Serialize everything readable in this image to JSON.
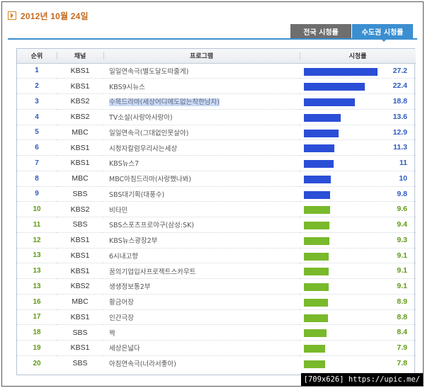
{
  "date": "2012년 10월 24일",
  "tabs": {
    "national": "전국 시청률",
    "capital": "수도권 시청률"
  },
  "columns": {
    "rank": "순위",
    "channel": "채널",
    "program": "프로그램",
    "rating": "시청률"
  },
  "rating_scale_max": 27.2,
  "rows": [
    {
      "rank": "1",
      "channel": "KBS1",
      "program": "일일연속극(별도달도따줄게)",
      "rating": "27.2",
      "tier": "blue",
      "highlight": false
    },
    {
      "rank": "2",
      "channel": "KBS1",
      "program": "KBS9시뉴스",
      "rating": "22.4",
      "tier": "blue",
      "highlight": false
    },
    {
      "rank": "3",
      "channel": "KBS2",
      "program": "수목드라마(세상어디에도없는착한남자)",
      "rating": "18.8",
      "tier": "blue",
      "highlight": true
    },
    {
      "rank": "4",
      "channel": "KBS2",
      "program": "TV소설(사랑아사랑아)",
      "rating": "13.6",
      "tier": "blue",
      "highlight": false
    },
    {
      "rank": "5",
      "channel": "MBC",
      "program": "일일연속극(그대없인못살아)",
      "rating": "12.9",
      "tier": "blue",
      "highlight": false
    },
    {
      "rank": "6",
      "channel": "KBS1",
      "program": "시청자칼럼우리사는세상",
      "rating": "11.3",
      "tier": "blue",
      "highlight": false
    },
    {
      "rank": "7",
      "channel": "KBS1",
      "program": "KBS뉴스7",
      "rating": "11",
      "tier": "blue",
      "highlight": false
    },
    {
      "rank": "8",
      "channel": "MBC",
      "program": "MBC아침드라마(사랑했나봐)",
      "rating": "10",
      "tier": "blue",
      "highlight": false
    },
    {
      "rank": "9",
      "channel": "SBS",
      "program": "SBS대기획(대풍수)",
      "rating": "9.8",
      "tier": "blue",
      "highlight": false
    },
    {
      "rank": "10",
      "channel": "KBS2",
      "program": "비타민",
      "rating": "9.6",
      "tier": "green",
      "highlight": false
    },
    {
      "rank": "11",
      "channel": "SBS",
      "program": "SBS스포츠프로야구(삼성:SK)",
      "rating": "9.4",
      "tier": "green",
      "highlight": false
    },
    {
      "rank": "12",
      "channel": "KBS1",
      "program": "KBS뉴스광장2부",
      "rating": "9.3",
      "tier": "green",
      "highlight": false
    },
    {
      "rank": "13",
      "channel": "KBS1",
      "program": "6시내고향",
      "rating": "9.1",
      "tier": "green",
      "highlight": false
    },
    {
      "rank": "13",
      "channel": "KBS1",
      "program": "꿈의기업입사프로젝트스카우트",
      "rating": "9.1",
      "tier": "green",
      "highlight": false
    },
    {
      "rank": "13",
      "channel": "KBS2",
      "program": "생생정보통2부",
      "rating": "9.1",
      "tier": "green",
      "highlight": false
    },
    {
      "rank": "16",
      "channel": "MBC",
      "program": "황금어장",
      "rating": "8.9",
      "tier": "green",
      "highlight": false
    },
    {
      "rank": "17",
      "channel": "KBS1",
      "program": "인간극장",
      "rating": "8.8",
      "tier": "green",
      "highlight": false
    },
    {
      "rank": "18",
      "channel": "SBS",
      "program": "짝",
      "rating": "8.4",
      "tier": "green",
      "highlight": false
    },
    {
      "rank": "19",
      "channel": "KBS1",
      "program": "세상은넓다",
      "rating": "7.9",
      "tier": "green",
      "highlight": false
    },
    {
      "rank": "20",
      "channel": "SBS",
      "program": "아침연속극(너라서좋아)",
      "rating": "7.8",
      "tier": "green",
      "highlight": false
    }
  ],
  "colors": {
    "blue": "#2b4ed7",
    "green": "#79b92c",
    "tab_active": "#3b8fd0",
    "date": "#c36b1e"
  },
  "watermark": "[709x626] https://upic.me/"
}
